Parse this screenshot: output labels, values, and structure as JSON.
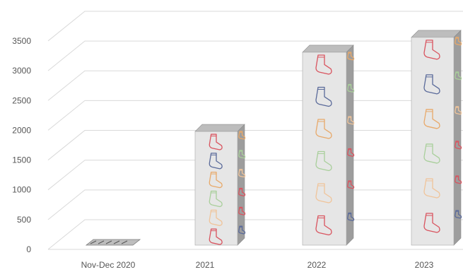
{
  "chart_data": {
    "type": "bar",
    "title": "",
    "xlabel": "",
    "ylabel": "",
    "categories": [
      "Nov-Dec 2020",
      "2021",
      "2022",
      "2023"
    ],
    "values": [
      60,
      1980,
      3310,
      3560
    ],
    "yticks": [
      "0",
      "500",
      "1000",
      "1500",
      "2000",
      "2500",
      "3000",
      "3500"
    ],
    "ylim": [
      0,
      3500
    ],
    "grid": true,
    "style": "3d-column",
    "decoration": "sock icons",
    "colors": {
      "bar_front": "#e6e6e6",
      "bar_side": "#9d9d9d",
      "bar_top": "#bdbdbd",
      "grid": "#d9d9d9",
      "sock_palette": [
        "#d9545f",
        "#5a6a9a",
        "#e8a96a",
        "#a9cf9b",
        "#f0c49a",
        "#d9545f"
      ]
    }
  }
}
